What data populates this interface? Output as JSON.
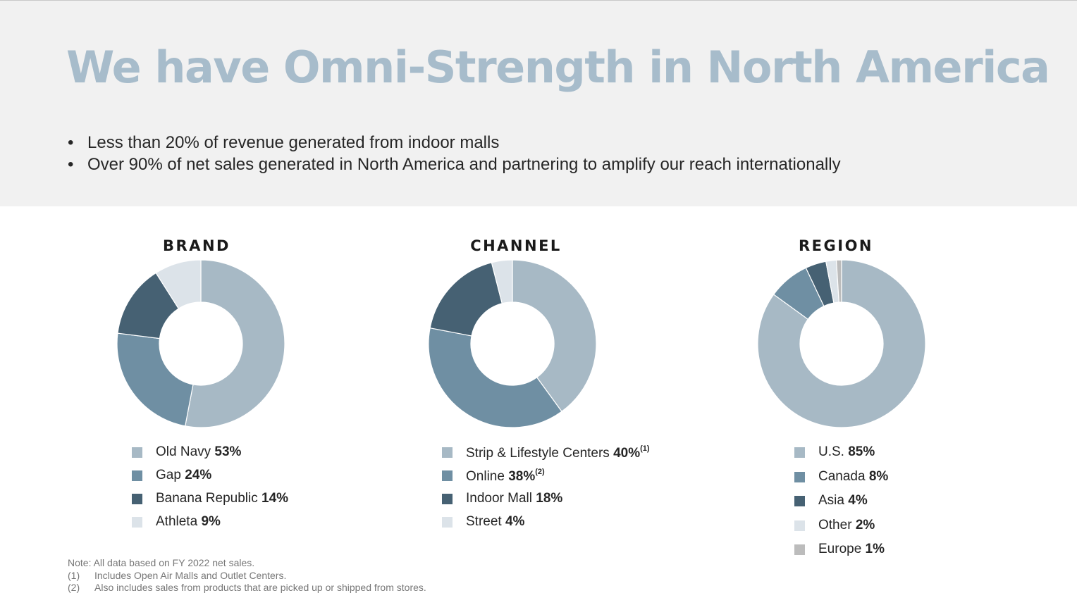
{
  "title": "We have Omni-Strength in North America",
  "bullets": [
    "Less than 20% of revenue generated from indoor malls",
    "Over 90% of net sales generated in North America and partnering to amplify our reach internationally"
  ],
  "bullet_glyph": "•",
  "chart_data": [
    {
      "type": "pie",
      "title": "BRAND",
      "donut": true,
      "categories": [
        "Old Navy",
        "Gap",
        "Banana Republic",
        "Athleta"
      ],
      "values": [
        53,
        24,
        14,
        9
      ],
      "value_labels": [
        "53%",
        "24%",
        "14%",
        "9%"
      ],
      "footnote_marks": [
        "",
        "",
        "",
        ""
      ],
      "colors": [
        "#a7b9c5",
        "#6f8fa3",
        "#466173",
        "#dce3e9"
      ]
    },
    {
      "type": "pie",
      "title": "CHANNEL",
      "donut": true,
      "categories": [
        "Strip & Lifestyle Centers",
        "Online",
        "Indoor Mall",
        "Street"
      ],
      "values": [
        40,
        38,
        18,
        4
      ],
      "value_labels": [
        "40%",
        "38%",
        "18%",
        "4%"
      ],
      "footnote_marks": [
        "(1)",
        "(2)",
        "",
        ""
      ],
      "colors": [
        "#a7b9c5",
        "#6f8fa3",
        "#466173",
        "#dce3e9"
      ]
    },
    {
      "type": "pie",
      "title": "REGION",
      "donut": true,
      "categories": [
        "U.S.",
        "Canada",
        "Asia",
        "Other",
        "Europe"
      ],
      "values": [
        85,
        8,
        4,
        2,
        1
      ],
      "value_labels": [
        "85%",
        "8%",
        "4%",
        "2%",
        "1%"
      ],
      "footnote_marks": [
        "",
        "",
        "",
        "",
        ""
      ],
      "colors": [
        "#a7b9c5",
        "#6f8fa3",
        "#466173",
        "#dce3e9",
        "#bcbcbc"
      ]
    }
  ],
  "notes": {
    "note": "Note: All data based on FY 2022 net sales.",
    "footnotes": [
      {
        "mark": "(1)",
        "text": "Includes Open Air Malls and Outlet Centers."
      },
      {
        "mark": "(2)",
        "text": "Also includes sales from products that are picked up or shipped from stores."
      }
    ]
  }
}
